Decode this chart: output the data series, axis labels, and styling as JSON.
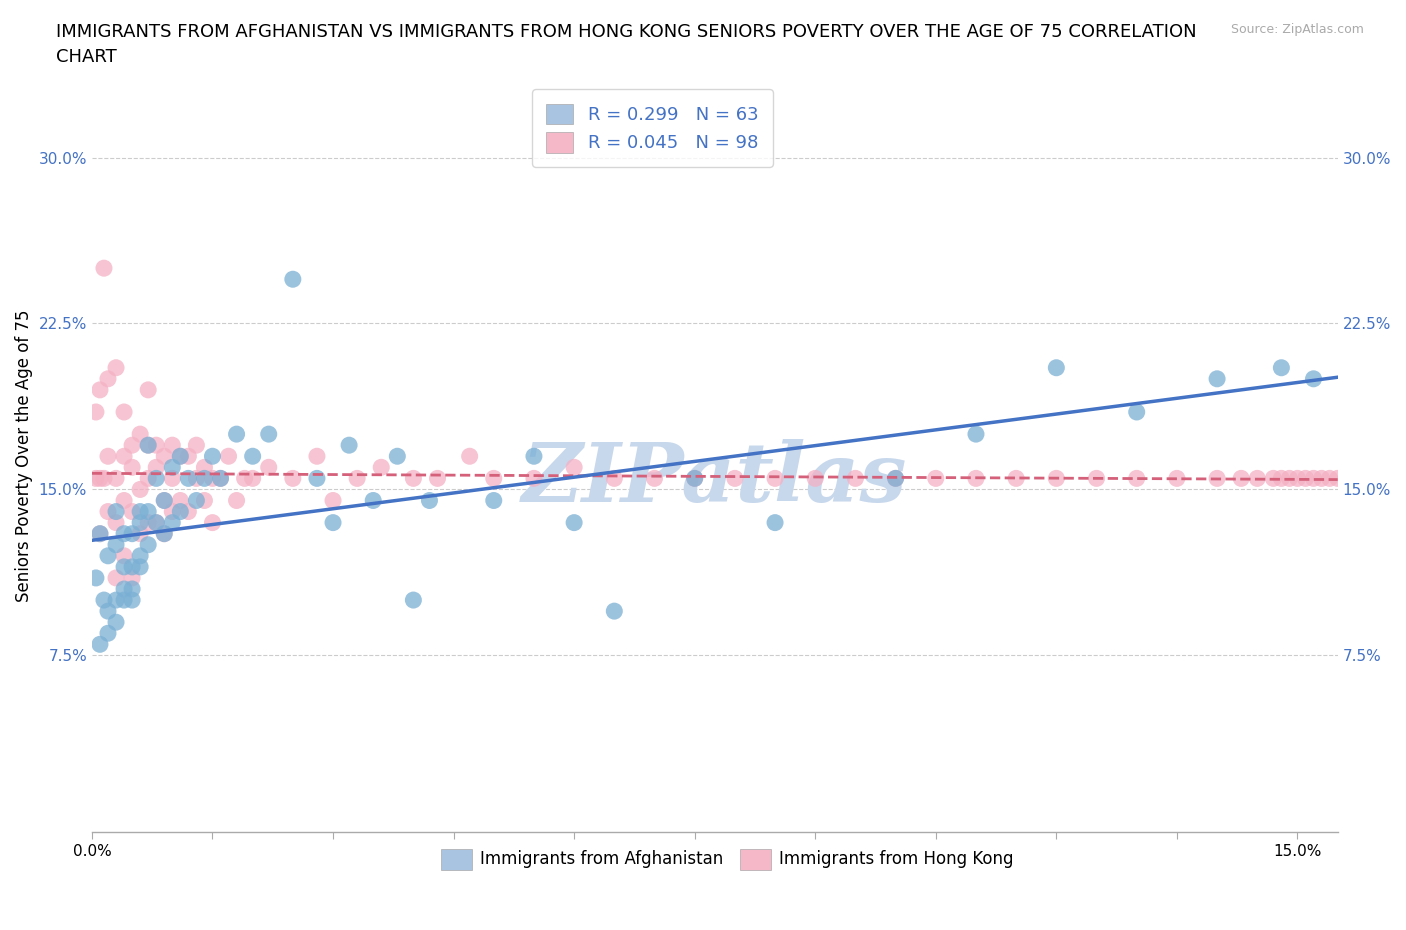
{
  "title_line1": "IMMIGRANTS FROM AFGHANISTAN VS IMMIGRANTS FROM HONG KONG SENIORS POVERTY OVER THE AGE OF 75 CORRELATION",
  "title_line2": "CHART",
  "source": "Source: ZipAtlas.com",
  "xlabel_blue": "Immigrants from Afghanistan",
  "xlabel_pink": "Immigrants from Hong Kong",
  "ylabel": "Seniors Poverty Over the Age of 75",
  "xlim": [
    0.0,
    0.155
  ],
  "ylim": [
    -0.005,
    0.335
  ],
  "ytick_labels": [
    "7.5%",
    "15.0%",
    "22.5%",
    "30.0%"
  ],
  "ytick_values": [
    0.075,
    0.15,
    0.225,
    0.3
  ],
  "xtick_values": [
    0.0,
    0.015,
    0.03,
    0.045,
    0.06,
    0.075,
    0.09,
    0.105,
    0.12,
    0.135,
    0.15
  ],
  "R_blue": 0.299,
  "N_blue": 63,
  "R_pink": 0.045,
  "N_pink": 98,
  "legend_color_blue": "#a8c4e0",
  "legend_color_pink": "#f4b8c8",
  "scatter_color_blue": "#7aafd4",
  "scatter_color_pink": "#f4b0c4",
  "line_color_blue": "#4472c4",
  "line_color_pink": "#d4607a",
  "watermark": "ZIPatlas",
  "watermark_color": "#c8d8ec",
  "title_fontsize": 13,
  "axis_label_fontsize": 12,
  "tick_fontsize": 11,
  "legend_fontsize": 13,
  "blue_scatter_x": [
    0.0005,
    0.001,
    0.001,
    0.0015,
    0.002,
    0.002,
    0.002,
    0.003,
    0.003,
    0.003,
    0.003,
    0.004,
    0.004,
    0.004,
    0.004,
    0.005,
    0.005,
    0.005,
    0.005,
    0.006,
    0.006,
    0.006,
    0.006,
    0.007,
    0.007,
    0.007,
    0.008,
    0.008,
    0.009,
    0.009,
    0.01,
    0.01,
    0.011,
    0.011,
    0.012,
    0.013,
    0.014,
    0.015,
    0.016,
    0.018,
    0.02,
    0.022,
    0.025,
    0.028,
    0.03,
    0.032,
    0.035,
    0.038,
    0.04,
    0.042,
    0.05,
    0.055,
    0.06,
    0.065,
    0.075,
    0.085,
    0.1,
    0.11,
    0.12,
    0.13,
    0.14,
    0.148,
    0.152
  ],
  "blue_scatter_y": [
    0.11,
    0.08,
    0.13,
    0.1,
    0.085,
    0.12,
    0.095,
    0.1,
    0.125,
    0.14,
    0.09,
    0.115,
    0.13,
    0.105,
    0.1,
    0.115,
    0.13,
    0.1,
    0.105,
    0.12,
    0.135,
    0.115,
    0.14,
    0.125,
    0.14,
    0.17,
    0.135,
    0.155,
    0.13,
    0.145,
    0.135,
    0.16,
    0.14,
    0.165,
    0.155,
    0.145,
    0.155,
    0.165,
    0.155,
    0.175,
    0.165,
    0.175,
    0.245,
    0.155,
    0.135,
    0.17,
    0.145,
    0.165,
    0.1,
    0.145,
    0.145,
    0.165,
    0.135,
    0.095,
    0.155,
    0.135,
    0.155,
    0.175,
    0.205,
    0.185,
    0.2,
    0.205,
    0.2
  ],
  "pink_scatter_x": [
    0.0005,
    0.0005,
    0.001,
    0.001,
    0.001,
    0.0015,
    0.0015,
    0.002,
    0.002,
    0.002,
    0.003,
    0.003,
    0.003,
    0.003,
    0.004,
    0.004,
    0.004,
    0.004,
    0.005,
    0.005,
    0.005,
    0.005,
    0.006,
    0.006,
    0.006,
    0.007,
    0.007,
    0.007,
    0.007,
    0.008,
    0.008,
    0.008,
    0.009,
    0.009,
    0.009,
    0.01,
    0.01,
    0.01,
    0.011,
    0.011,
    0.012,
    0.012,
    0.013,
    0.013,
    0.014,
    0.014,
    0.015,
    0.015,
    0.016,
    0.017,
    0.018,
    0.019,
    0.02,
    0.022,
    0.025,
    0.028,
    0.03,
    0.033,
    0.036,
    0.04,
    0.043,
    0.047,
    0.05,
    0.055,
    0.06,
    0.065,
    0.07,
    0.075,
    0.08,
    0.085,
    0.09,
    0.095,
    0.1,
    0.105,
    0.11,
    0.115,
    0.12,
    0.125,
    0.13,
    0.135,
    0.14,
    0.143,
    0.145,
    0.147,
    0.148,
    0.149,
    0.15,
    0.151,
    0.152,
    0.153,
    0.154,
    0.155,
    0.156,
    0.157,
    0.158,
    0.159,
    0.16,
    0.165
  ],
  "pink_scatter_y": [
    0.155,
    0.185,
    0.13,
    0.155,
    0.195,
    0.25,
    0.155,
    0.14,
    0.165,
    0.2,
    0.11,
    0.135,
    0.155,
    0.205,
    0.12,
    0.145,
    0.165,
    0.185,
    0.11,
    0.14,
    0.16,
    0.17,
    0.13,
    0.15,
    0.175,
    0.135,
    0.155,
    0.17,
    0.195,
    0.135,
    0.16,
    0.17,
    0.13,
    0.145,
    0.165,
    0.14,
    0.155,
    0.17,
    0.145,
    0.165,
    0.14,
    0.165,
    0.155,
    0.17,
    0.145,
    0.16,
    0.135,
    0.155,
    0.155,
    0.165,
    0.145,
    0.155,
    0.155,
    0.16,
    0.155,
    0.165,
    0.145,
    0.155,
    0.16,
    0.155,
    0.155,
    0.165,
    0.155,
    0.155,
    0.16,
    0.155,
    0.155,
    0.155,
    0.155,
    0.155,
    0.155,
    0.155,
    0.155,
    0.155,
    0.155,
    0.155,
    0.155,
    0.155,
    0.155,
    0.155,
    0.155,
    0.155,
    0.155,
    0.155,
    0.155,
    0.155,
    0.155,
    0.155,
    0.155,
    0.155,
    0.155,
    0.155,
    0.155,
    0.155,
    0.155,
    0.155,
    0.155,
    0.155
  ]
}
